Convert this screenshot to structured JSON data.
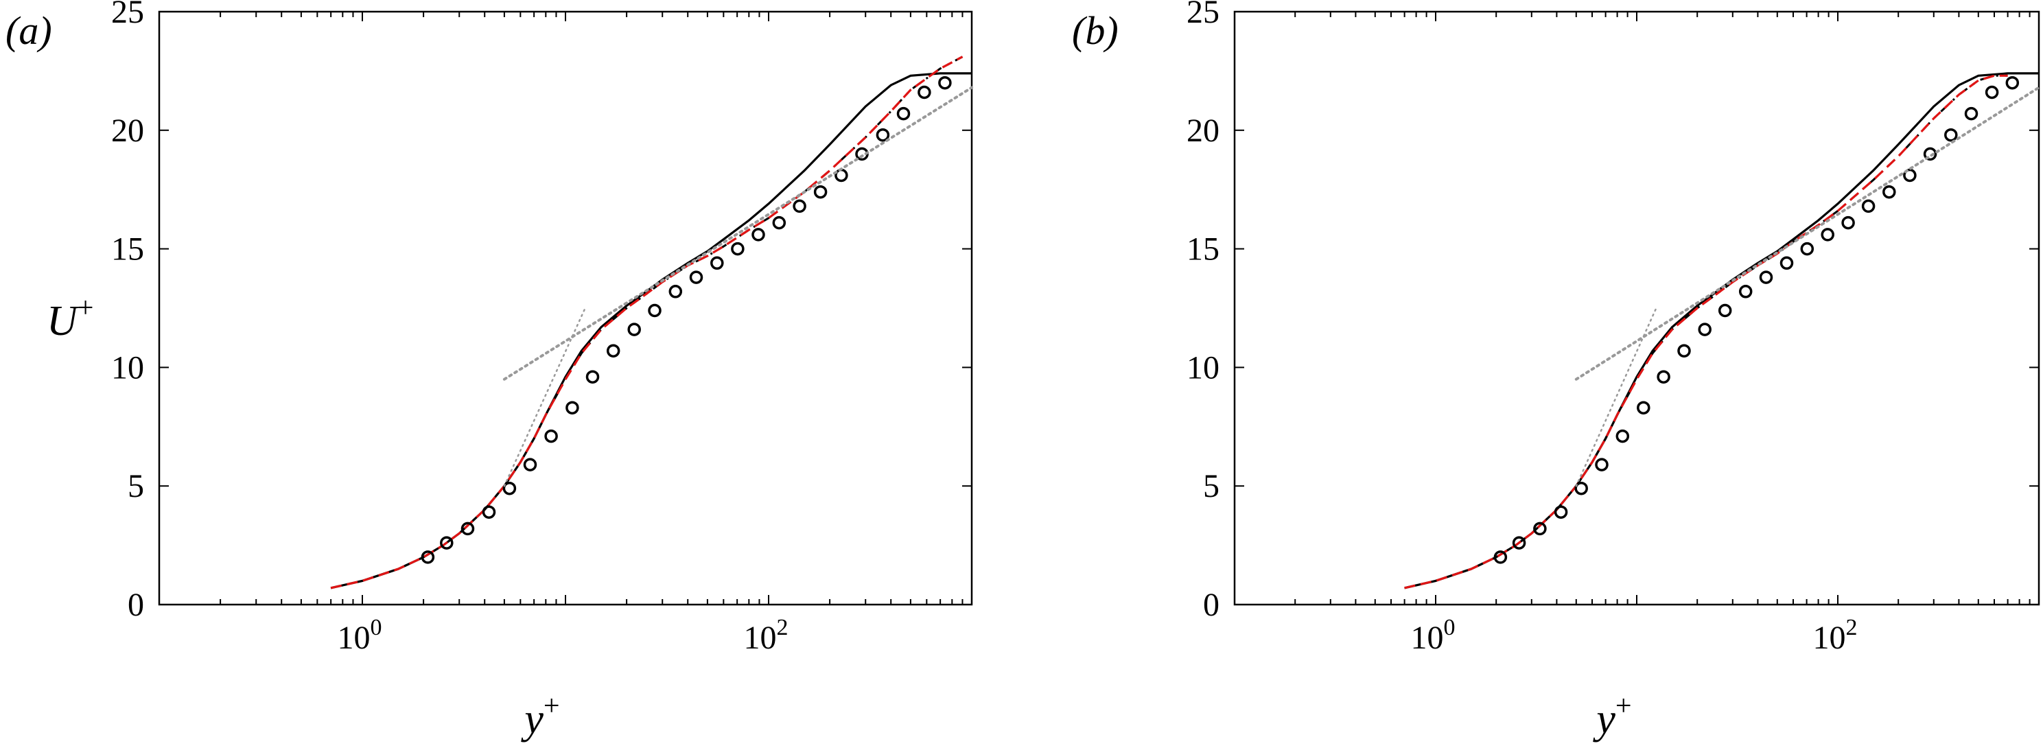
{
  "chart_data": [
    {
      "type": "line",
      "panel": "(a)",
      "xlabel": "y+",
      "ylabel": "U+",
      "xscale": "log",
      "xlim": [
        0.1,
        1000
      ],
      "ylim": [
        0,
        25
      ],
      "xticks": [
        "10^0",
        "10^2"
      ],
      "yticks": [
        "0",
        "5",
        "10",
        "15",
        "20",
        "25"
      ],
      "series": [
        {
          "style": "solid-black",
          "x": [
            0.7,
            1,
            1.5,
            2,
            2.5,
            3,
            4,
            5,
            6,
            7,
            8,
            10,
            12,
            15,
            20,
            25,
            30,
            40,
            50,
            60,
            80,
            100,
            150,
            200,
            300,
            400,
            500,
            700,
            1000
          ],
          "y": [
            0.7,
            1.0,
            1.5,
            2.0,
            2.5,
            3.0,
            4.0,
            5.0,
            6.0,
            7.0,
            8.0,
            9.6,
            10.7,
            11.7,
            12.6,
            13.2,
            13.7,
            14.4,
            14.9,
            15.4,
            16.2,
            16.9,
            18.3,
            19.4,
            21.0,
            21.9,
            22.3,
            22.4,
            22.4
          ]
        },
        {
          "style": "dashed-red",
          "x": [
            0.7,
            1,
            1.5,
            2,
            2.5,
            3,
            4,
            5,
            6,
            7,
            8,
            10,
            12,
            15,
            20,
            25,
            30,
            40,
            50,
            60,
            80,
            100,
            150,
            200,
            300,
            400,
            500,
            700,
            900
          ],
          "y": [
            0.7,
            1.0,
            1.5,
            2.0,
            2.5,
            3.0,
            4.0,
            5.0,
            6.0,
            7.0,
            8.0,
            9.5,
            10.6,
            11.6,
            12.5,
            13.1,
            13.6,
            14.3,
            14.7,
            15.1,
            15.8,
            16.3,
            17.4,
            18.3,
            19.7,
            20.8,
            21.7,
            22.6,
            23.1
          ]
        },
        {
          "style": "circles",
          "x": [
            2.1,
            2.6,
            3.3,
            4.2,
            5.3,
            6.7,
            8.5,
            10.8,
            13.6,
            17.2,
            21.8,
            27.5,
            34.8,
            44,
            55.7,
            70.4,
            89,
            112.6,
            142,
            180,
            228,
            288,
            365,
            461,
            584,
            738
          ],
          "y": [
            2.0,
            2.6,
            3.2,
            3.9,
            4.9,
            5.9,
            7.1,
            8.3,
            9.6,
            10.7,
            11.6,
            12.4,
            13.2,
            13.8,
            14.4,
            15.0,
            15.6,
            16.1,
            16.8,
            17.4,
            18.1,
            19.0,
            19.8,
            20.7,
            21.6,
            22.0
          ]
        },
        {
          "style": "dotted-gray-loglaw",
          "x": [
            5,
            1000
          ],
          "y": [
            9.5,
            21.8
          ]
        },
        {
          "style": "dotted-gray-linear",
          "x": [
            5,
            12.5
          ],
          "y": [
            5,
            12.5
          ]
        }
      ]
    },
    {
      "type": "line",
      "panel": "(b)",
      "xlabel": "y+",
      "ylabel": "",
      "xscale": "log",
      "xlim": [
        0.1,
        1000
      ],
      "ylim": [
        0,
        25
      ],
      "xticks": [
        "10^0",
        "10^2"
      ],
      "yticks": [
        "0",
        "5",
        "10",
        "15",
        "20",
        "25"
      ],
      "series": [
        {
          "style": "solid-black",
          "x": [
            0.7,
            1,
            1.5,
            2,
            2.5,
            3,
            4,
            5,
            6,
            7,
            8,
            10,
            12,
            15,
            20,
            25,
            30,
            40,
            50,
            60,
            80,
            100,
            150,
            200,
            300,
            400,
            500,
            700,
            1000
          ],
          "y": [
            0.7,
            1.0,
            1.5,
            2.0,
            2.5,
            3.0,
            4.0,
            5.0,
            6.0,
            7.0,
            8.0,
            9.6,
            10.7,
            11.7,
            12.6,
            13.2,
            13.7,
            14.4,
            14.9,
            15.4,
            16.2,
            16.9,
            18.3,
            19.4,
            21.0,
            21.9,
            22.3,
            22.4,
            22.4
          ]
        },
        {
          "style": "dashed-red",
          "x": [
            0.7,
            1,
            1.5,
            2,
            2.5,
            3,
            4,
            5,
            6,
            7,
            8,
            10,
            12,
            15,
            20,
            25,
            30,
            40,
            50,
            60,
            80,
            100,
            150,
            200,
            300,
            400,
            500,
            600,
            700
          ],
          "y": [
            0.7,
            1.0,
            1.5,
            2.0,
            2.5,
            3.0,
            4.0,
            5.0,
            6.0,
            7.0,
            8.0,
            9.5,
            10.6,
            11.6,
            12.5,
            13.1,
            13.6,
            14.3,
            14.8,
            15.3,
            16.0,
            16.6,
            17.9,
            18.9,
            20.5,
            21.5,
            22.1,
            22.3,
            22.3
          ]
        },
        {
          "style": "circles",
          "x": [
            2.1,
            2.6,
            3.3,
            4.2,
            5.3,
            6.7,
            8.5,
            10.8,
            13.6,
            17.2,
            21.8,
            27.5,
            34.8,
            44,
            55.7,
            70.4,
            89,
            112.6,
            142,
            180,
            228,
            288,
            365,
            461,
            584,
            738
          ],
          "y": [
            2.0,
            2.6,
            3.2,
            3.9,
            4.9,
            5.9,
            7.1,
            8.3,
            9.6,
            10.7,
            11.6,
            12.4,
            13.2,
            13.8,
            14.4,
            15.0,
            15.6,
            16.1,
            16.8,
            17.4,
            18.1,
            19.0,
            19.8,
            20.7,
            21.6,
            22.0
          ]
        },
        {
          "style": "dotted-gray-loglaw",
          "x": [
            5,
            1000
          ],
          "y": [
            9.5,
            21.8
          ]
        },
        {
          "style": "dotted-gray-linear",
          "x": [
            5,
            12.5
          ],
          "y": [
            5,
            12.5
          ]
        }
      ]
    }
  ],
  "colors": {
    "axis": "#000000",
    "solid": "#000000",
    "dashed_red": "#e01515",
    "dashdot_black": "#000000",
    "circles": "#000000",
    "dotted_gray": "#999999"
  }
}
